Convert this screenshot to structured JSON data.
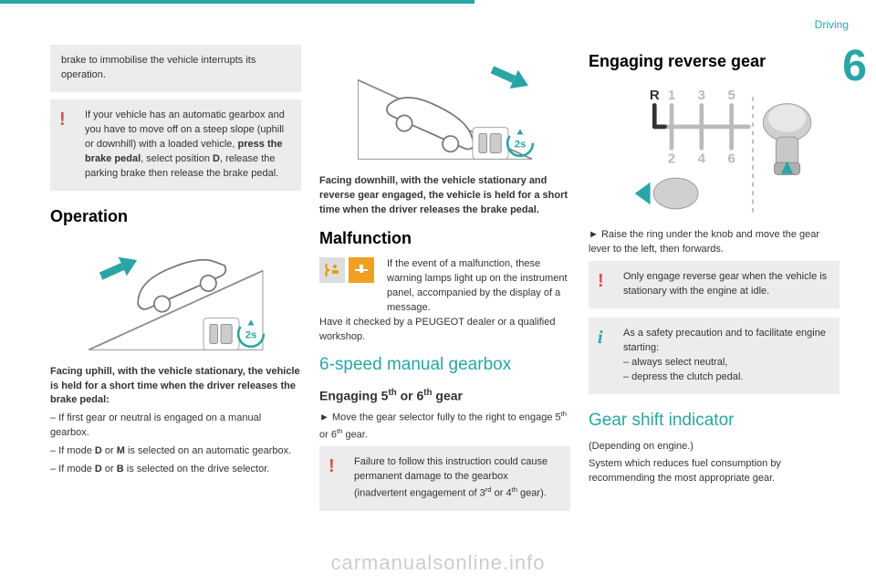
{
  "header": {
    "section": "Driving",
    "chapter": "6"
  },
  "col1": {
    "greyBox": "brake to immobilise the vehicle interrupts its operation.",
    "warnBox": "If your vehicle has an automatic gearbox and you have to move off on a steep slope (uphill or downhill) with a loaded vehicle, <b>press the brake pedal</b>, select position <b>D</b>, release the parking brake then release the brake pedal.",
    "h2": "Operation",
    "p1": "<b>Facing uphill, with the vehicle stationary, the vehicle is held for a short time when the driver releases the brake pedal:</b>",
    "li1": "–  If first gear or neutral is engaged on a manual gearbox.",
    "li2": "–  If mode <b>D</b> or <b>M</b> is selected on an automatic gearbox.",
    "li3": "–  If mode <b>D</b> or  <b>B</b>  is selected on the drive selector."
  },
  "col2": {
    "p1": "<b>Facing downhill, with the vehicle stationary and reverse gear engaged, the vehicle is held for a short time when the driver releases the brake pedal.</b>",
    "h2a": "Malfunction",
    "malfText": "If the event of a malfunction, these warning lamps light up on the instrument panel, accompanied by the display of a message.",
    "malfText2": "Have it checked by a PEUGEOT dealer or a qualified workshop.",
    "h2b": "6-speed manual gearbox",
    "h3": "Engaging 5<sup>th</sup> or 6<sup>th</sup> gear",
    "p2": "►  Move the gear selector fully to the right to engage 5<sup>th</sup> or 6<sup>th</sup> gear.",
    "warnBox": "Failure to follow this instruction could cause permanent damage to the gearbox (inadvertent engagement of 3<sup>rd</sup> or 4<sup>th</sup> gear)."
  },
  "col3": {
    "h2a": "Engaging reverse gear",
    "p1": "►  Raise the ring under the knob and move the gear lever to the left, then forwards.",
    "warnBox": "Only engage reverse gear when the vehicle is stationary with the engine at idle.",
    "infoBox": "As a safety precaution and to facilitate engine starting:",
    "li1": "–  always select neutral,",
    "li2": "–  depress the clutch pedal.",
    "h2b": "Gear shift indicator",
    "p2": "(Depending on engine.)",
    "p3": "System which reduces fuel consumption by recommending the most appropriate gear."
  },
  "watermark": "carmanualsonline.info",
  "colors": {
    "teal": "#2aa5a5",
    "grey": "#ececec",
    "red": "#d9534f",
    "amber": "#f0a020",
    "lightgrey": "#bbb"
  },
  "gearLabels": {
    "R": "R",
    "g1": "1",
    "g2": "2",
    "g3": "3",
    "g4": "4",
    "g5": "5",
    "g6": "6"
  },
  "twoSec": "2s"
}
